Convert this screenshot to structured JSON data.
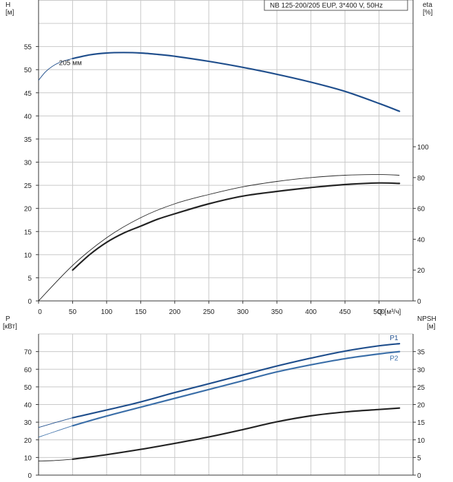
{
  "chart_data": [
    {
      "type": "line",
      "title": "NB 125-200/205 EUP, 3*400 V, 50Hz",
      "xlabel": "Q [м³/ч]",
      "ylabel": "H\n[м]",
      "ylabel_right": "eta\n[%]",
      "xlim": [
        0,
        550
      ],
      "ylim": [
        0,
        60
      ],
      "ylim_right": [
        0,
        180
      ],
      "x_ticks": [
        0,
        50,
        100,
        150,
        200,
        250,
        300,
        350,
        400,
        450,
        500
      ],
      "y_ticks": [
        0,
        5,
        10,
        15,
        20,
        25,
        30,
        35,
        40,
        45,
        50,
        55
      ],
      "y_right_ticks": [
        0,
        20,
        40,
        60,
        80,
        100
      ],
      "grid": true,
      "series": [
        {
          "name": "205 мм",
          "axis": "left",
          "color": "#1f4e8c",
          "thin_x": [
            0,
            10,
            20,
            30,
            40,
            50
          ],
          "thin_y": [
            47.7,
            49.5,
            50.7,
            51.5,
            52.0,
            52.4
          ],
          "x": [
            50,
            75,
            100,
            125,
            150,
            175,
            200,
            250,
            300,
            350,
            400,
            450,
            500,
            530
          ],
          "y": [
            52.4,
            53.2,
            53.6,
            53.7,
            53.6,
            53.3,
            52.9,
            51.8,
            50.5,
            49.0,
            47.3,
            45.3,
            42.7,
            41.0
          ]
        },
        {
          "name": "",
          "axis": "right",
          "color": "#222222",
          "thin_x": [
            0,
            50,
            100,
            150,
            200,
            250,
            300,
            350,
            400,
            450,
            500,
            530
          ],
          "thin_y": [
            0,
            23,
            41,
            54,
            63,
            69,
            74,
            77.5,
            80,
            81.5,
            82,
            81.5
          ],
          "x": [
            50,
            75,
            100,
            125,
            150,
            175,
            200,
            250,
            300,
            350,
            400,
            450,
            500,
            530
          ],
          "y": [
            20,
            30,
            38,
            44,
            48.5,
            53,
            56.5,
            63,
            68,
            71,
            73.5,
            75.5,
            76.5,
            76.2
          ]
        }
      ]
    },
    {
      "type": "line",
      "xlabel": "",
      "ylabel": "P\n[кВт]",
      "ylabel_right": "NPSH\n[м]",
      "xlim": [
        0,
        550
      ],
      "ylim": [
        0,
        80
      ],
      "ylim_right": [
        0,
        40
      ],
      "y_ticks": [
        0,
        10,
        20,
        30,
        40,
        50,
        60,
        70
      ],
      "y_right_ticks": [
        0,
        5,
        10,
        15,
        20,
        25,
        30,
        35
      ],
      "grid": true,
      "series": [
        {
          "name": "P1",
          "axis": "left",
          "color": "#1f4e8c",
          "thin_x": [
            0,
            25,
            50
          ],
          "thin_y": [
            27,
            29.8,
            32.5
          ],
          "x": [
            50,
            140,
            200,
            250,
            300,
            350,
            400,
            450,
            500,
            530
          ],
          "y": [
            32.5,
            40.5,
            46.8,
            51.8,
            56.8,
            61.8,
            66.3,
            70.3,
            73.3,
            74.5
          ]
        },
        {
          "name": "P2",
          "axis": "left",
          "color": "#3a6ea8",
          "thin_x": [
            0,
            25,
            50
          ],
          "thin_y": [
            21.5,
            24.8,
            28
          ],
          "x": [
            50,
            100,
            150,
            200,
            250,
            300,
            350,
            400,
            450,
            500,
            530
          ],
          "y": [
            28,
            33.5,
            38.5,
            43.5,
            48.5,
            53.5,
            58.5,
            62.5,
            66,
            68.7,
            70
          ]
        },
        {
          "name": "",
          "axis": "right",
          "color": "#222222",
          "thin_x": [
            0,
            20,
            50
          ],
          "thin_y": [
            4,
            4.1,
            4.5
          ],
          "x": [
            50,
            100,
            150,
            200,
            250,
            300,
            350,
            400,
            450,
            500,
            530
          ],
          "y": [
            4.5,
            5.8,
            7.3,
            9.0,
            10.8,
            12.9,
            15.1,
            16.8,
            17.9,
            18.6,
            19.0
          ]
        }
      ]
    }
  ]
}
